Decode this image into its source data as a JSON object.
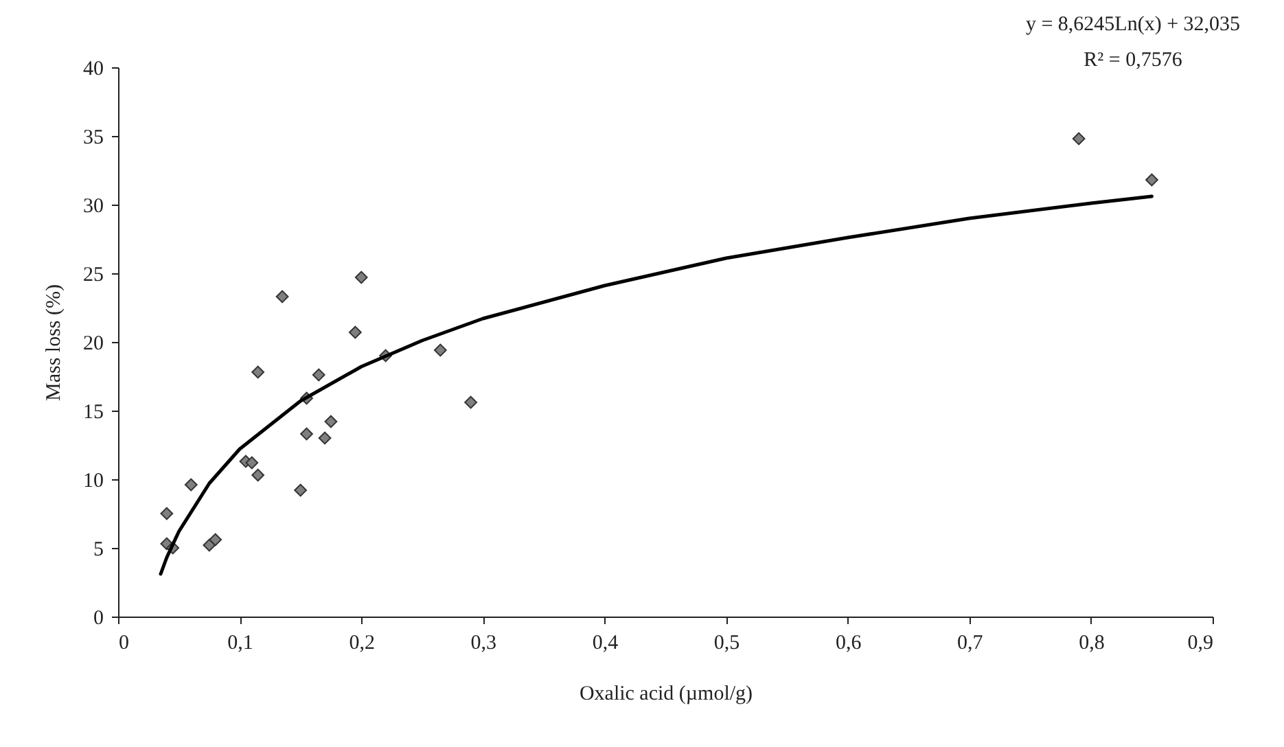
{
  "chart_data": {
    "type": "scatter",
    "xlabel": "Oxalic acid (µmol/g)",
    "ylabel": "Mass loss (%)",
    "annotations": [
      "y = 8,6245Ln(x) + 32,035",
      "R² = 0,7576"
    ],
    "xlim": [
      0,
      0.9
    ],
    "ylim": [
      0,
      40
    ],
    "xticks": [
      0,
      {
        "value": 0.1,
        "label": "0,1"
      },
      {
        "value": 0.2,
        "label": "0,2"
      },
      {
        "value": 0.3,
        "label": "0,3"
      },
      {
        "value": 0.4,
        "label": "0,4"
      },
      {
        "value": 0.5,
        "label": "0,5"
      },
      {
        "value": 0.6,
        "label": "0,6"
      },
      {
        "value": 0.7,
        "label": "0,7"
      },
      {
        "value": 0.8,
        "label": "0,8"
      },
      {
        "value": 0.9,
        "label": "0,9"
      }
    ],
    "yticks": [
      0,
      5,
      10,
      15,
      20,
      25,
      30,
      35,
      40
    ],
    "grid": false,
    "marker": "diamond",
    "series": [
      {
        "color": "#7f7f7f",
        "x": [
          0.04,
          0.04,
          0.045,
          0.06,
          0.075,
          0.08,
          0.105,
          0.11,
          0.115,
          0.115,
          0.135,
          0.15,
          0.155,
          0.155,
          0.165,
          0.17,
          0.175,
          0.195,
          0.2,
          0.22,
          0.265,
          0.29,
          0.79,
          0.85
        ],
        "values": [
          7.5,
          5.3,
          5.0,
          9.6,
          5.2,
          5.6,
          11.3,
          11.2,
          10.3,
          17.8,
          23.3,
          9.2,
          13.3,
          15.9,
          17.6,
          13.0,
          14.2,
          20.7,
          24.7,
          19.0,
          19.4,
          15.6,
          34.8,
          31.8
        ]
      },
      {
        "type": "line",
        "color": "#000000",
        "line_style": "solid",
        "marker": "none",
        "x": [
          0.035,
          0.04,
          0.05,
          0.075,
          0.1,
          0.15,
          0.2,
          0.25,
          0.3,
          0.4,
          0.5,
          0.6,
          0.7,
          0.8,
          0.85
        ],
        "values": [
          3.1,
          4.3,
          6.2,
          9.7,
          12.2,
          15.7,
          18.2,
          20.1,
          21.7,
          24.1,
          26.1,
          27.6,
          29.0,
          30.1,
          30.6
        ]
      }
    ]
  }
}
